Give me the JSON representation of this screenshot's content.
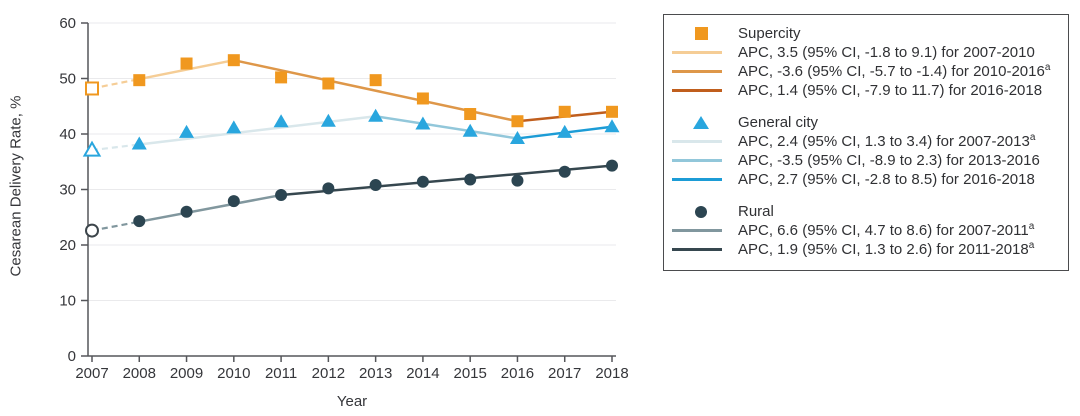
{
  "chart_data": {
    "type": "line",
    "title": "",
    "xlabel": "Year",
    "ylabel": "Cesarean Delivery Rate, %",
    "x": [
      2007,
      2008,
      2009,
      2010,
      2011,
      2012,
      2013,
      2014,
      2015,
      2016,
      2017,
      2018
    ],
    "ylim": [
      0,
      60
    ],
    "yticks": [
      0,
      10,
      20,
      30,
      40,
      50,
      60
    ],
    "grid": "horizontal",
    "legend_position": "right-outside-box",
    "axis_color": "#55565a",
    "grid_color": "#eaeaec",
    "tick_text_color": "#35363a",
    "series": [
      {
        "name": "Supercity",
        "marker": "square",
        "color": "#f0981f",
        "open_marker_years": [
          2007
        ],
        "values": [
          48.2,
          49.7,
          52.7,
          53.3,
          50.2,
          49.1,
          49.7,
          46.4,
          43.6,
          42.3,
          44.0,
          44.0
        ],
        "trend_segments": [
          {
            "label": "APC, 3.5 (95% CI, -1.8 to 9.1) for 2007-2010",
            "footnote": "",
            "color": "#f5cd96",
            "from_year": 2007,
            "to_year": 2010,
            "dashed_first_interval": true
          },
          {
            "label": "APC, -3.6 (95% CI, -5.7 to -1.4) for 2010-2016",
            "footnote": "a",
            "color": "#de9749",
            "from_year": 2010,
            "to_year": 2016,
            "dashed_first_interval": false
          },
          {
            "label": "APC, 1.4 (95% CI, -7.9 to 11.7) for 2016-2018",
            "footnote": "",
            "color": "#c05e1d",
            "from_year": 2016,
            "to_year": 2018,
            "dashed_first_interval": false
          }
        ]
      },
      {
        "name": "General city",
        "marker": "triangle",
        "color": "#29a6de",
        "open_marker_years": [
          2007
        ],
        "values": [
          37.1,
          38.2,
          40.3,
          41.1,
          42.2,
          42.3,
          43.2,
          41.8,
          40.5,
          39.2,
          40.3,
          41.3
        ],
        "trend_segments": [
          {
            "label": "APC, 2.4 (95% CI, 1.3 to 3.4) for 2007-2013",
            "footnote": "a",
            "color": "#d9e7eb",
            "from_year": 2007,
            "to_year": 2013,
            "dashed_first_interval": true
          },
          {
            "label": "APC, -3.5 (95% CI, -8.9 to 2.3) for 2013-2016",
            "footnote": "",
            "color": "#92c7da",
            "from_year": 2013,
            "to_year": 2016,
            "dashed_first_interval": false
          },
          {
            "label": "APC, 2.7 (95% CI, -2.8 to 8.5) for 2016-2018",
            "footnote": "",
            "color": "#1c9cd6",
            "from_year": 2016,
            "to_year": 2018,
            "dashed_first_interval": false
          }
        ]
      },
      {
        "name": "Rural",
        "marker": "circle",
        "color": "#2c4551",
        "open_marker_years": [
          2007
        ],
        "values": [
          22.6,
          24.3,
          26.0,
          27.9,
          29.0,
          30.2,
          30.8,
          31.4,
          31.8,
          31.6,
          33.2,
          34.3
        ],
        "trend_segments": [
          {
            "label": "APC, 6.6 (95% CI, 4.7 to 8.6) for 2007-2011",
            "footnote": "a",
            "color": "#81979e",
            "from_year": 2007,
            "to_year": 2011,
            "dashed_first_interval": true
          },
          {
            "label": "APC, 1.9 (95% CI, 1.3 to 2.6) for 2011-2018",
            "footnote": "a",
            "color": "#36474f",
            "from_year": 2011,
            "to_year": 2018,
            "dashed_first_interval": false
          }
        ]
      }
    ]
  }
}
